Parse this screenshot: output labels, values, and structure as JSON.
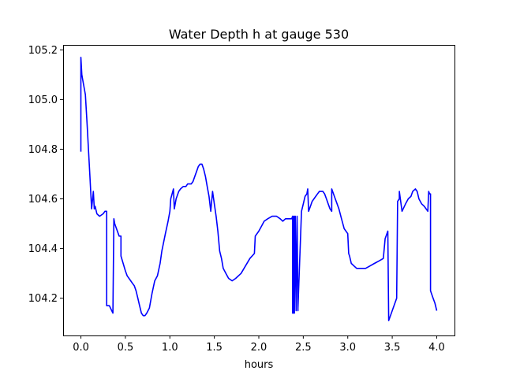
{
  "chart_data": {
    "type": "line",
    "title": "Water Depth h at gauge 530",
    "xlabel": "hours",
    "ylabel": "",
    "xlim": [
      -0.2,
      4.2
    ],
    "ylim": [
      104.05,
      105.22
    ],
    "xticks": [
      0.0,
      0.5,
      1.0,
      1.5,
      2.0,
      2.5,
      3.0,
      3.5,
      4.0
    ],
    "xtick_labels": [
      "0.0",
      "0.5",
      "1.0",
      "1.5",
      "2.0",
      "2.5",
      "3.0",
      "3.5",
      "4.0"
    ],
    "yticks": [
      104.2,
      104.4,
      104.6,
      104.8,
      105.0,
      105.2
    ],
    "ytick_labels": [
      "104.2",
      "104.4",
      "104.6",
      "104.8",
      "105.0",
      "105.2"
    ],
    "grid": false,
    "series": [
      {
        "color": "#0000ff",
        "x": [
          0.0,
          0.0,
          0.01,
          0.02,
          0.05,
          0.07,
          0.1,
          0.12,
          0.14,
          0.15,
          0.16,
          0.18,
          0.21,
          0.25,
          0.27,
          0.29,
          0.29,
          0.32,
          0.36,
          0.37,
          0.38,
          0.43,
          0.45,
          0.45,
          0.5,
          0.52,
          0.56,
          0.58,
          0.6,
          0.62,
          0.64,
          0.66,
          0.68,
          0.7,
          0.72,
          0.74,
          0.77,
          0.8,
          0.83,
          0.86,
          0.89,
          0.91,
          0.95,
          0.98,
          1.0,
          1.01,
          1.04,
          1.05,
          1.07,
          1.1,
          1.12,
          1.15,
          1.18,
          1.2,
          1.22,
          1.24,
          1.26,
          1.28,
          1.3,
          1.32,
          1.34,
          1.36,
          1.38,
          1.4,
          1.42,
          1.44,
          1.46,
          1.48,
          1.5,
          1.52,
          1.54,
          1.56,
          1.58,
          1.6,
          1.63,
          1.66,
          1.7,
          1.74,
          1.8,
          1.85,
          1.9,
          1.95,
          1.96,
          2.0,
          2.03,
          2.06,
          2.1,
          2.15,
          2.2,
          2.24,
          2.27,
          2.3,
          2.35,
          2.37,
          2.38,
          2.38,
          2.39,
          2.39,
          2.4,
          2.4,
          2.41,
          2.42,
          2.43,
          2.44,
          2.44,
          2.48,
          2.5,
          2.52,
          2.54,
          2.55,
          2.56,
          2.58,
          2.6,
          2.62,
          2.64,
          2.66,
          2.68,
          2.7,
          2.72,
          2.74,
          2.76,
          2.78,
          2.8,
          2.82,
          2.82,
          2.86,
          2.9,
          2.93,
          2.96,
          3.0,
          3.01,
          3.02,
          3.04,
          3.07,
          3.1,
          3.15,
          3.2,
          3.25,
          3.3,
          3.35,
          3.4,
          3.42,
          3.45,
          3.46,
          3.5,
          3.55,
          3.56,
          3.58,
          3.58,
          3.61,
          3.65,
          3.68,
          3.71,
          3.73,
          3.76,
          3.78,
          3.8,
          3.83,
          3.86,
          3.9,
          3.91,
          3.92,
          3.93,
          3.93,
          3.96,
          3.98,
          4.0
        ],
        "y": [
          104.79,
          105.17,
          105.1,
          105.08,
          105.02,
          104.9,
          104.7,
          104.56,
          104.63,
          104.56,
          104.57,
          104.54,
          104.53,
          104.54,
          104.55,
          104.55,
          104.17,
          104.17,
          104.14,
          104.52,
          104.5,
          104.45,
          104.45,
          104.37,
          104.31,
          104.29,
          104.27,
          104.26,
          104.25,
          104.23,
          104.2,
          104.17,
          104.14,
          104.13,
          104.13,
          104.14,
          104.16,
          104.22,
          104.27,
          104.29,
          104.34,
          104.39,
          104.46,
          104.51,
          104.55,
          104.6,
          104.64,
          104.56,
          104.6,
          104.63,
          104.64,
          104.65,
          104.65,
          104.66,
          104.66,
          104.66,
          104.67,
          104.69,
          104.71,
          104.73,
          104.74,
          104.74,
          104.72,
          104.69,
          104.65,
          104.61,
          104.55,
          104.63,
          104.58,
          104.53,
          104.47,
          104.39,
          104.36,
          104.32,
          104.3,
          104.28,
          104.27,
          104.28,
          104.3,
          104.33,
          104.36,
          104.38,
          104.45,
          104.47,
          104.49,
          104.51,
          104.52,
          104.53,
          104.53,
          104.52,
          104.51,
          104.52,
          104.52,
          104.52,
          104.53,
          104.14,
          104.53,
          104.14,
          104.53,
          104.14,
          104.53,
          104.15,
          104.53,
          104.15,
          104.16,
          104.55,
          104.58,
          104.61,
          104.62,
          104.64,
          104.55,
          104.57,
          104.59,
          104.6,
          104.61,
          104.62,
          104.63,
          104.63,
          104.63,
          104.62,
          104.6,
          104.58,
          104.56,
          104.55,
          104.64,
          104.6,
          104.56,
          104.52,
          104.48,
          104.46,
          104.38,
          104.37,
          104.34,
          104.33,
          104.32,
          104.32,
          104.32,
          104.33,
          104.34,
          104.35,
          104.36,
          104.44,
          104.47,
          104.11,
          104.15,
          104.2,
          104.59,
          104.6,
          104.63,
          104.55,
          104.58,
          104.6,
          104.61,
          104.63,
          104.64,
          104.63,
          104.6,
          104.58,
          104.57,
          104.55,
          104.63,
          104.62,
          104.62,
          104.23,
          104.2,
          104.18,
          104.15
        ]
      }
    ]
  }
}
